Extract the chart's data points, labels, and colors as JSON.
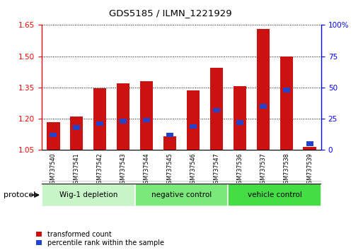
{
  "title": "GDS5185 / ILMN_1221929",
  "samples": [
    "GSM737540",
    "GSM737541",
    "GSM737542",
    "GSM737543",
    "GSM737544",
    "GSM737545",
    "GSM737546",
    "GSM737547",
    "GSM737536",
    "GSM737537",
    "GSM737538",
    "GSM737539"
  ],
  "transformed_count": [
    1.185,
    1.21,
    1.345,
    1.37,
    1.38,
    1.115,
    1.335,
    1.445,
    1.355,
    1.63,
    1.5,
    1.065
  ],
  "percentile_rank_pct": [
    12,
    18,
    21,
    23,
    24,
    12,
    19,
    32,
    22,
    35,
    48,
    5
  ],
  "groups": [
    {
      "label": "Wig-1 depletion",
      "start": 0,
      "end": 4
    },
    {
      "label": "negative control",
      "start": 4,
      "end": 8
    },
    {
      "label": "vehicle control",
      "start": 8,
      "end": 12
    }
  ],
  "group_colors": [
    "#c8f5c8",
    "#7ae87a",
    "#44dd44"
  ],
  "bar_color_red": "#cc1111",
  "bar_color_blue": "#2244cc",
  "ylim_left": [
    1.05,
    1.65
  ],
  "yticks_left": [
    1.05,
    1.2,
    1.35,
    1.5,
    1.65
  ],
  "ylim_right": [
    0,
    100
  ],
  "yticks_right": [
    0,
    25,
    50,
    75,
    100
  ],
  "bar_width": 0.55,
  "bg_color": "#ffffff",
  "grid_color": "#000000",
  "legend_items": [
    {
      "label": "transformed count",
      "color": "#cc1111"
    },
    {
      "label": "percentile rank within the sample",
      "color": "#2244cc"
    }
  ],
  "protocol_label": "protocol"
}
